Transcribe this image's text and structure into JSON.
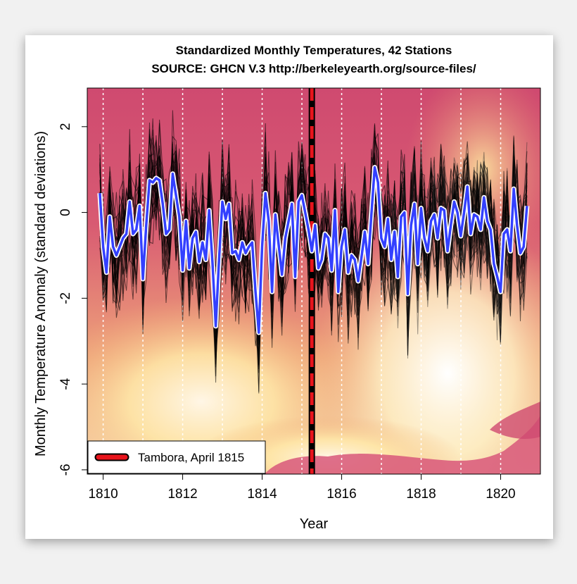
{
  "chart_data": {
    "type": "line",
    "title": "Standardized Monthly Temperatures, 42 Stations",
    "subtitle": "SOURCE: GHCN V.3 http://berkeleyearth.org/source-files/",
    "xlabel": "Year",
    "ylabel": "Monthly Temperature Anomaly (standard deviations)",
    "xlim": [
      1809.6,
      1821.0
    ],
    "ylim": [
      -6.1,
      2.9
    ],
    "x_ticks": [
      1810,
      1812,
      1814,
      1816,
      1818,
      1820
    ],
    "y_ticks": [
      2,
      0,
      -2,
      -4,
      -6
    ],
    "y_tick_labels": [
      "2",
      "0",
      "-2",
      "-4",
      "-6"
    ],
    "year_gridlines": [
      1810,
      1811,
      1812,
      1813,
      1814,
      1815,
      1816,
      1817,
      1818,
      1819,
      1820
    ],
    "grid_style": "dotted-white-vertical",
    "background": "volcanic-eruption-photo",
    "event_line": {
      "x": 1815.25,
      "label": "Tambora, April 1815",
      "color": "#e8141c"
    },
    "legend": {
      "position": "bottom-left",
      "entries": [
        "Tambora, April 1815"
      ]
    },
    "series": [
      {
        "kind": "mean",
        "color": "#3340ff",
        "outline": "#ffffff",
        "x_start": 1809.917,
        "x_step": 0.0833,
        "values": [
          0.45,
          -0.8,
          -1.4,
          -0.1,
          -0.8,
          -1.0,
          -0.8,
          -0.6,
          -0.5,
          0.25,
          -0.5,
          -0.4,
          0.15,
          -1.55,
          -0.3,
          0.75,
          0.7,
          0.8,
          0.75,
          0.2,
          -0.5,
          -0.4,
          0.9,
          0.4,
          -0.1,
          -1.35,
          -0.2,
          -1.3,
          -0.6,
          -0.45,
          -1.15,
          -0.7,
          -1.1,
          0.05,
          -1.15,
          -2.65,
          -1.1,
          0.25,
          -0.15,
          0.2,
          -0.95,
          -0.9,
          -1.1,
          -0.7,
          -0.95,
          -0.8,
          -0.7,
          -1.85,
          -2.8,
          -0.8,
          0.45,
          -0.2,
          -1.85,
          -0.05,
          -0.75,
          -1.45,
          -0.6,
          -0.2,
          0.2,
          -1.5,
          0.25,
          0.4,
          0.0,
          -0.4,
          -0.9,
          -0.3,
          -1.3,
          -1.1,
          -0.5,
          -0.6,
          -1.35,
          0.05,
          -1.85,
          -0.8,
          -0.4,
          -1.4,
          -1.0,
          -1.1,
          -1.6,
          -1.05,
          -0.45,
          -1.2,
          -0.05,
          1.05,
          0.7,
          -0.6,
          -0.8,
          -0.15,
          -1.1,
          -0.45,
          -1.5,
          -0.1,
          0.0,
          -1.9,
          -0.3,
          0.2,
          -1.2,
          0.1,
          -0.6,
          -0.9,
          -0.2,
          -0.05,
          -0.6,
          0.1,
          0.05,
          -0.9,
          -0.3,
          0.25,
          0.0,
          -0.55,
          0.0,
          0.6,
          -0.5,
          -0.05,
          -0.1,
          -0.4,
          0.35,
          -0.2,
          -0.4,
          -1.2,
          -1.5,
          -1.85,
          -0.5,
          -0.4,
          -0.9,
          0.55,
          -0.3,
          -0.95,
          -0.8,
          0.15
        ]
      }
    ]
  }
}
